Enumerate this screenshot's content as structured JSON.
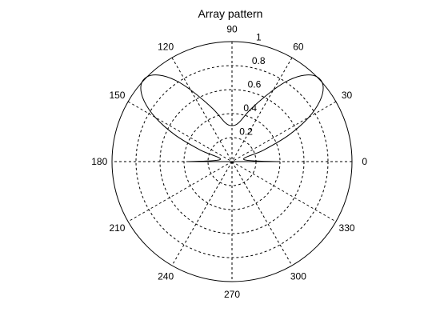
{
  "chart_data": {
    "type": "polar-line",
    "title": "Array pattern",
    "theta_unit": "degrees",
    "rlim": [
      0,
      1
    ],
    "r_ticks": [
      0.2,
      0.4,
      0.6,
      0.8,
      1
    ],
    "r_tick_labels": [
      "0.2",
      "0.4",
      "0.6",
      "0.8",
      "1"
    ],
    "theta_ticks": [
      0,
      30,
      60,
      90,
      120,
      150,
      180,
      210,
      240,
      270,
      300,
      330
    ],
    "theta_tick_labels": [
      "0",
      "30",
      "60",
      "90",
      "120",
      "150",
      "180",
      "210",
      "240",
      "270",
      "300",
      "330"
    ],
    "grid": true,
    "series": [
      {
        "color": "#000000",
        "theta": [
          0,
          10,
          20,
          25,
          30,
          35,
          40,
          45,
          50,
          55,
          60,
          70,
          80,
          90,
          100,
          110,
          120,
          125,
          130,
          135,
          140,
          145,
          150,
          155,
          160,
          170,
          180
        ],
        "r": [
          0.38,
          0.1,
          0.28,
          0.52,
          0.74,
          0.9,
          0.99,
          1.0,
          0.94,
          0.83,
          0.69,
          0.47,
          0.33,
          0.3,
          0.33,
          0.47,
          0.69,
          0.83,
          0.94,
          1.0,
          0.99,
          0.9,
          0.74,
          0.52,
          0.28,
          0.1,
          0.38
        ]
      }
    ]
  }
}
